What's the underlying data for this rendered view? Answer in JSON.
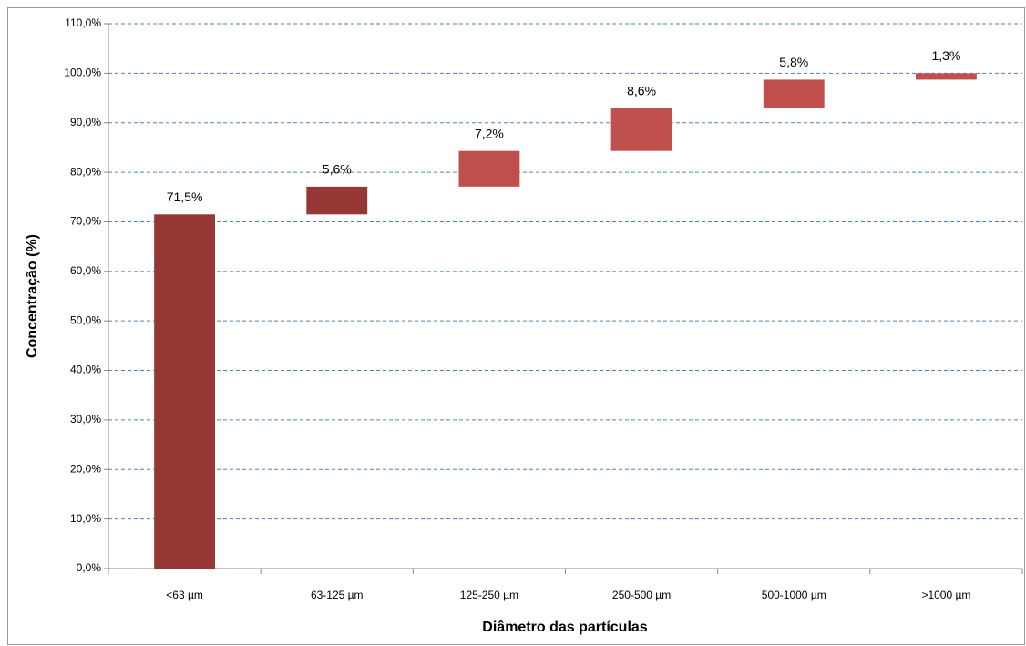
{
  "chart_data": {
    "type": "waterfall",
    "x_label": "Diâmetro das partículas",
    "y_label": "Concentração (%)",
    "categories": [
      "<63 µm",
      "63-125 µm",
      "125-250 µm",
      "250-500 µm",
      "500-1000 µm",
      ">1000 µm"
    ],
    "values": [
      71.5,
      5.6,
      7.2,
      8.6,
      5.8,
      1.3
    ],
    "value_labels": [
      "71,5%",
      "5,6%",
      "7,2%",
      "8,6%",
      "5,8%",
      "1,3%"
    ],
    "colors": [
      "#953735",
      "#953735",
      "#c0504d",
      "#c0504d",
      "#c0504d",
      "#c0504d"
    ],
    "ylim": [
      0,
      110
    ],
    "yticks": [
      {
        "value": 0,
        "label": "0,0%"
      },
      {
        "value": 10,
        "label": "10,0%"
      },
      {
        "value": 20,
        "label": "20,0%"
      },
      {
        "value": 30,
        "label": "30,0%"
      },
      {
        "value": 40,
        "label": "40,0%"
      },
      {
        "value": 50,
        "label": "50,0%"
      },
      {
        "value": 60,
        "label": "60,0%"
      },
      {
        "value": 70,
        "label": "70,0%"
      },
      {
        "value": 80,
        "label": "80,0%"
      },
      {
        "value": 90,
        "label": "90,0%"
      },
      {
        "value": 100,
        "label": "100,0%"
      },
      {
        "value": 110,
        "label": "110,0%"
      }
    ],
    "grid": true
  }
}
